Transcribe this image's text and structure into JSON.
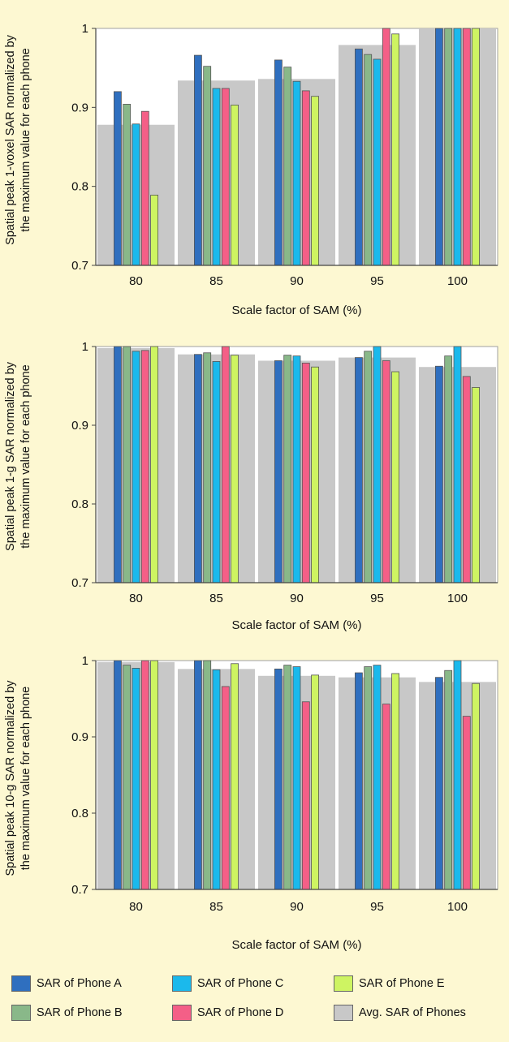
{
  "colors": {
    "Phone A": "#2f6fbf",
    "Phone B": "#89b889",
    "Phone C": "#1bb9ec",
    "Phone D": "#f45f87",
    "Phone E": "#cef462",
    "Avg": "#c8c8c8",
    "background": "#fdf8d2",
    "plot_background": "#ffffff"
  },
  "chart_data": [
    {
      "type": "bar",
      "ylabel": "Spatial peak 1-voxel SAR normalized by the maximum value for each phone",
      "xlabel": "Scale factor of SAM (%)",
      "categories": [
        "80",
        "85",
        "90",
        "95",
        "100"
      ],
      "ylim": [
        0.7,
        1.0
      ],
      "yticks": [
        "0.7",
        "0.8",
        "0.9",
        "1"
      ],
      "series": [
        {
          "name": "SAR of Phone A",
          "values": [
            0.92,
            0.966,
            0.96,
            0.974,
            1.0
          ]
        },
        {
          "name": "SAR of Phone B",
          "values": [
            0.904,
            0.952,
            0.951,
            0.967,
            1.0
          ]
        },
        {
          "name": "SAR of Phone C",
          "values": [
            0.879,
            0.924,
            0.933,
            0.961,
            1.0
          ]
        },
        {
          "name": "SAR of Phone D",
          "values": [
            0.895,
            0.924,
            0.921,
            1.0,
            1.0
          ]
        },
        {
          "name": "SAR of Phone E",
          "values": [
            0.789,
            0.903,
            0.914,
            0.993,
            1.0
          ]
        },
        {
          "name": "Avg. SAR of Phones",
          "values": [
            0.878,
            0.934,
            0.936,
            0.979,
            1.0
          ]
        }
      ]
    },
    {
      "type": "bar",
      "ylabel": "Spatial peak 1-g SAR normalized by the maximum value for each phone",
      "xlabel": "Scale factor of SAM (%)",
      "categories": [
        "80",
        "85",
        "90",
        "95",
        "100"
      ],
      "ylim": [
        0.7,
        1.0
      ],
      "yticks": [
        "0.7",
        "0.8",
        "0.9",
        "1"
      ],
      "series": [
        {
          "name": "SAR of Phone A",
          "values": [
            1.0,
            0.99,
            0.982,
            0.986,
            0.975
          ]
        },
        {
          "name": "SAR of Phone B",
          "values": [
            1.0,
            0.992,
            0.989,
            0.994,
            0.988
          ]
        },
        {
          "name": "SAR of Phone C",
          "values": [
            0.994,
            0.981,
            0.988,
            1.0,
            1.0
          ]
        },
        {
          "name": "SAR of Phone D",
          "values": [
            0.995,
            1.0,
            0.979,
            0.982,
            0.962
          ]
        },
        {
          "name": "SAR of Phone E",
          "values": [
            1.0,
            0.989,
            0.974,
            0.968,
            0.948
          ]
        },
        {
          "name": "Avg. SAR of Phones",
          "values": [
            0.998,
            0.99,
            0.982,
            0.986,
            0.974
          ]
        }
      ]
    },
    {
      "type": "bar",
      "ylabel": "Spatial peak 10-g SAR normalized by the maximum value for each phone",
      "xlabel": "Scale factor of SAM (%)",
      "categories": [
        "80",
        "85",
        "90",
        "95",
        "100"
      ],
      "ylim": [
        0.7,
        1.0
      ],
      "yticks": [
        "0.7",
        "0.8",
        "0.9",
        "1"
      ],
      "series": [
        {
          "name": "SAR of Phone A",
          "values": [
            1.0,
            1.0,
            0.989,
            0.984,
            0.978
          ]
        },
        {
          "name": "SAR of Phone B",
          "values": [
            0.994,
            1.0,
            0.994,
            0.992,
            0.987
          ]
        },
        {
          "name": "SAR of Phone C",
          "values": [
            0.99,
            0.988,
            0.992,
            0.994,
            1.0
          ]
        },
        {
          "name": "SAR of Phone D",
          "values": [
            1.0,
            0.966,
            0.946,
            0.943,
            0.927
          ]
        },
        {
          "name": "SAR of Phone E",
          "values": [
            1.0,
            0.996,
            0.981,
            0.983,
            0.97
          ]
        },
        {
          "name": "Avg. SAR of Phones",
          "values": [
            0.998,
            0.989,
            0.98,
            0.978,
            0.972
          ]
        }
      ]
    }
  ],
  "legend": {
    "items": [
      {
        "label": "SAR of Phone A",
        "color_key": "Phone A"
      },
      {
        "label": "SAR of Phone C",
        "color_key": "Phone C"
      },
      {
        "label": "SAR of Phone E",
        "color_key": "Phone E"
      },
      {
        "label": "SAR of Phone B",
        "color_key": "Phone B"
      },
      {
        "label": "SAR of Phone D",
        "color_key": "Phone D"
      },
      {
        "label": "Avg. SAR of Phones",
        "color_key": "Avg"
      }
    ]
  }
}
